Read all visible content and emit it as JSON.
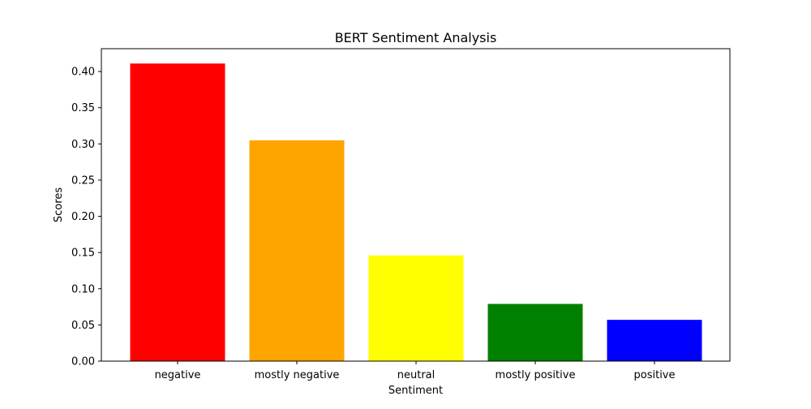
{
  "chart_data": {
    "type": "bar",
    "title": "BERT Sentiment Analysis",
    "xlabel": "Sentiment",
    "ylabel": "Scores",
    "categories": [
      "negative",
      "mostly negative",
      "neutral",
      "mostly positive",
      "positive"
    ],
    "values": [
      0.411,
      0.305,
      0.146,
      0.079,
      0.057
    ],
    "colors": [
      "#ff0000",
      "#ffa500",
      "#ffff00",
      "#008000",
      "#0000ff"
    ],
    "ylim": [
      0,
      0.4315
    ],
    "yticks": [
      "0.00",
      "0.05",
      "0.10",
      "0.15",
      "0.20",
      "0.25",
      "0.30",
      "0.35",
      "0.40"
    ],
    "grid": false,
    "legend": "none"
  }
}
